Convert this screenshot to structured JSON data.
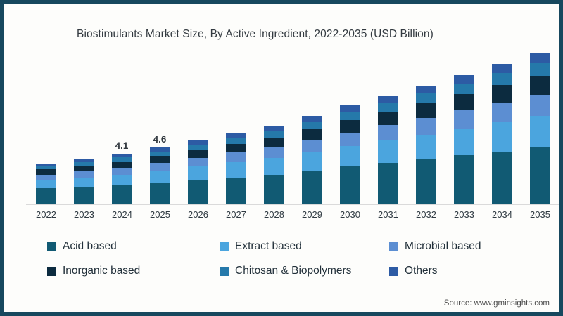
{
  "title": "Biostimulants Market Size, By Active Ingredient, 2022-2035 (USD Billion)",
  "source": "Source: www.gminsights.com",
  "frame": {
    "border_color": "#17485e",
    "background": "#fdfdfb"
  },
  "chart_data": {
    "type": "bar",
    "stacked": true,
    "title": "Biostimulants Market Size, By Active Ingredient, 2022-2035 (USD Billion)",
    "xlabel": "",
    "ylabel": "USD Billion",
    "grid": false,
    "legend_position": "bottom",
    "categories": [
      "2022",
      "2023",
      "2024",
      "2025",
      "2026",
      "2027",
      "2028",
      "2029",
      "2030",
      "2031",
      "2032",
      "2033",
      "2034",
      "2035"
    ],
    "series": [
      {
        "name": "Acid based",
        "color": "#115a73",
        "values": [
          1.25,
          1.39,
          1.54,
          1.72,
          1.95,
          2.17,
          2.4,
          2.7,
          3.04,
          3.33,
          3.64,
          3.97,
          4.3,
          4.65
        ]
      },
      {
        "name": "Extract based",
        "color": "#4ba5de",
        "values": [
          0.69,
          0.78,
          0.86,
          0.97,
          1.09,
          1.22,
          1.34,
          1.51,
          1.7,
          1.87,
          2.04,
          2.23,
          2.42,
          2.6
        ]
      },
      {
        "name": "Microbial based",
        "color": "#5c8ed2",
        "values": [
          0.46,
          0.52,
          0.57,
          0.64,
          0.73,
          0.81,
          0.9,
          1.01,
          1.13,
          1.25,
          1.36,
          1.48,
          1.61,
          1.74
        ]
      },
      {
        "name": "Inorganic based",
        "color": "#0c2b3f",
        "values": [
          0.41,
          0.46,
          0.51,
          0.58,
          0.65,
          0.73,
          0.8,
          0.9,
          1.01,
          1.11,
          1.21,
          1.33,
          1.44,
          1.55
        ]
      },
      {
        "name": "Chitosan & Biopolymers",
        "color": "#2579aa",
        "values": [
          0.28,
          0.31,
          0.35,
          0.39,
          0.44,
          0.49,
          0.54,
          0.61,
          0.69,
          0.76,
          0.82,
          0.9,
          0.98,
          1.05
        ]
      },
      {
        "name": "Others",
        "color": "#2d5ba4",
        "values": [
          0.21,
          0.24,
          0.27,
          0.3,
          0.34,
          0.38,
          0.42,
          0.47,
          0.53,
          0.58,
          0.63,
          0.69,
          0.75,
          0.81
        ]
      }
    ],
    "totals": [
      3.3,
      3.7,
      4.1,
      4.6,
      5.2,
      5.8,
      6.4,
      7.2,
      8.1,
      8.9,
      9.7,
      10.6,
      11.5,
      12.4
    ],
    "value_labels": [
      {
        "category": "2024",
        "text": "4.1"
      },
      {
        "category": "2025",
        "text": "4.6"
      }
    ],
    "axis": {
      "baseline_color": "#dadada"
    }
  },
  "legend": {
    "items": [
      {
        "label": "Acid based",
        "color": "#115a73"
      },
      {
        "label": "Extract based",
        "color": "#4ba5de"
      },
      {
        "label": "Microbial based",
        "color": "#5c8ed2"
      },
      {
        "label": "Inorganic based",
        "color": "#0c2b3f"
      },
      {
        "label": "Chitosan & Biopolymers",
        "color": "#2579aa"
      },
      {
        "label": "Others",
        "color": "#2d5ba4"
      }
    ]
  }
}
